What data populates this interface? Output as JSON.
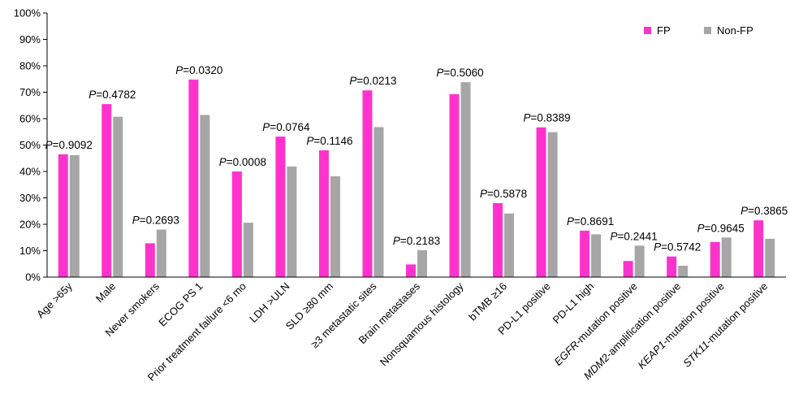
{
  "chart_data": {
    "type": "bar",
    "title": "",
    "xlabel": "",
    "ylabel": "",
    "ylim": [
      0,
      100
    ],
    "yticks": [
      0,
      10,
      20,
      30,
      40,
      50,
      60,
      70,
      80,
      90,
      100
    ],
    "ytick_suffix": "%",
    "grid": false,
    "legend_position": "top-right",
    "colors": {
      "FP": "#ff33cc",
      "Non-FP": "#a6a6a6"
    },
    "categories": [
      "Age >65y",
      "Male",
      "Never smokers",
      "ECOG PS 1",
      "Prior treatment failure <6 mo",
      "LDH >ULN",
      "SLD ≥80 mm",
      "≥3 metastatic sites",
      "Brain metastases",
      "Nonsquamous histology",
      "bTMB ≥16",
      "PD-L1 positive",
      "PD-L1 high",
      "EGFR-mutation positive",
      "MDM2-amplification positive",
      "KEAP1-mutation positive",
      "STK11-mutation positive"
    ],
    "category_gene_prefix": [
      "",
      "",
      "",
      "",
      "",
      "",
      "",
      "",
      "",
      "",
      "",
      "",
      "",
      "EGFR",
      "MDM2",
      "KEAP1",
      "STK11"
    ],
    "series": [
      {
        "name": "FP",
        "values": [
          46.5,
          65.5,
          12.8,
          74.8,
          40.0,
          53.2,
          48.0,
          70.7,
          4.8,
          69.3,
          28.0,
          56.7,
          17.6,
          6.1,
          7.8,
          13.3,
          21.5
        ]
      },
      {
        "name": "Non-FP",
        "values": [
          46.2,
          60.7,
          18.0,
          61.4,
          20.6,
          41.9,
          38.2,
          56.8,
          10.2,
          73.8,
          24.1,
          54.9,
          16.2,
          11.9,
          4.3,
          15.0,
          14.5
        ]
      }
    ],
    "annotations": [
      {
        "category": "Age >65y",
        "p_label": "P",
        "p_value": "=0.9092"
      },
      {
        "category": "Male",
        "p_label": "P",
        "p_value": "=0.4782"
      },
      {
        "category": "Never smokers",
        "p_label": "P",
        "p_value": "=0.2693"
      },
      {
        "category": "ECOG PS 1",
        "p_label": "P",
        "p_value": "=0.0320"
      },
      {
        "category": "Prior treatment failure <6 mo",
        "p_label": "P",
        "p_value": "=0.0008"
      },
      {
        "category": "LDH >ULN",
        "p_label": "P",
        "p_value": "=0.0764"
      },
      {
        "category": "SLD ≥80 mm",
        "p_label": "P",
        "p_value": "=0.1146"
      },
      {
        "category": "≥3 metastatic sites",
        "p_label": "P",
        "p_value": "=0.0213"
      },
      {
        "category": "Brain metastases",
        "p_label": "P",
        "p_value": "=0.2183"
      },
      {
        "category": "Nonsquamous histology",
        "p_label": "P",
        "p_value": "=0.5060"
      },
      {
        "category": "bTMB ≥16",
        "p_label": "P",
        "p_value": "=0.5878"
      },
      {
        "category": "PD-L1 positive",
        "p_label": "P",
        "p_value": "=0.8389"
      },
      {
        "category": "PD-L1 high",
        "p_label": "P",
        "p_value": "=0.8691"
      },
      {
        "category": "EGFR-mutation positive",
        "p_label": "P",
        "p_value": "=0.2441"
      },
      {
        "category": "MDM2-amplification positive",
        "p_label": "P",
        "p_value": "=0.5742"
      },
      {
        "category": "KEAP1-mutation positive",
        "p_label": "P",
        "p_value": "=0.9645"
      },
      {
        "category": "STK11-mutation positive",
        "p_label": "P",
        "p_value": "=0.3865"
      }
    ]
  }
}
